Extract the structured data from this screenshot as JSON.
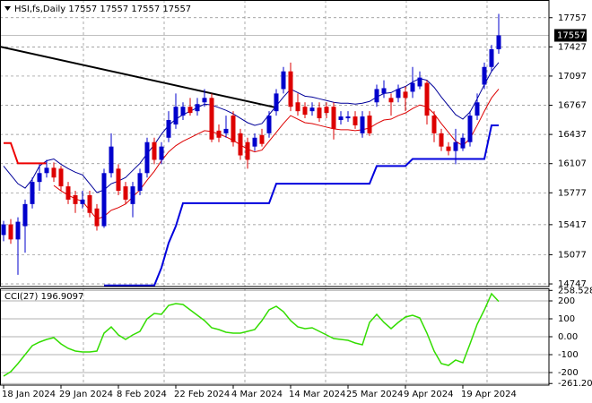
{
  "chart_data": [
    {
      "type": "candlestick",
      "title": "HSI,fs,Daily 17557 17557 17557 17557",
      "categories": [
        "18 Jan 2024",
        null,
        null,
        null,
        null,
        null,
        null,
        null,
        "29 Jan 2024",
        null,
        null,
        null,
        null,
        null,
        null,
        null,
        "8 Feb 2024",
        null,
        null,
        null,
        null,
        null,
        null,
        null,
        "22 Feb 2024",
        null,
        null,
        null,
        null,
        null,
        null,
        null,
        "4 Mar 2024",
        null,
        null,
        null,
        null,
        null,
        null,
        null,
        "14 Mar 2024",
        null,
        null,
        null,
        null,
        null,
        null,
        null,
        "25 Mar 2024",
        null,
        null,
        null,
        null,
        null,
        null,
        null,
        "9 Apr 2024",
        null,
        null,
        null,
        null,
        null,
        null,
        null,
        "19 Apr 2024",
        null,
        null,
        null,
        null,
        null
      ],
      "open": [
        15300,
        15420,
        15250,
        15400,
        15650,
        15900,
        16000,
        16060,
        16050,
        15850,
        15750,
        15650,
        15750,
        15600,
        15400,
        16000,
        16050,
        15850,
        15650,
        15800,
        16000,
        16350,
        16150,
        16400,
        16550,
        16650,
        16750,
        16700,
        16800,
        16850,
        16480,
        16450,
        16650,
        16450,
        16350,
        16300,
        16430,
        16450,
        16700,
        16950,
        17150,
        16800,
        16750,
        16700,
        16740,
        16750,
        16750,
        16600,
        16620,
        16640,
        16450,
        16650,
        16800,
        16900,
        16850,
        16850,
        16920,
        16920,
        16980,
        17020,
        16650,
        16450,
        16300,
        16250,
        16280,
        16350,
        16650,
        17000,
        17200,
        17400
      ],
      "high": [
        15460,
        15480,
        15500,
        15700,
        15950,
        16100,
        16150,
        16120,
        16080,
        15900,
        15800,
        15800,
        15800,
        15650,
        16050,
        16450,
        16100,
        15900,
        15900,
        16050,
        16400,
        16400,
        16350,
        16700,
        16900,
        16800,
        16850,
        16850,
        16950,
        16900,
        16550,
        16650,
        16700,
        16500,
        16400,
        16450,
        16500,
        16700,
        16950,
        17200,
        17250,
        16900,
        16800,
        16800,
        16800,
        16800,
        16800,
        16700,
        16700,
        16700,
        16700,
        16700,
        17000,
        17050,
        16900,
        17000,
        16980,
        17200,
        17150,
        17050,
        16700,
        16500,
        16350,
        16500,
        16450,
        16700,
        16900,
        17250,
        17450,
        17800
      ],
      "low": [
        15230,
        15200,
        14850,
        15100,
        15600,
        15800,
        15950,
        15900,
        15800,
        15650,
        15550,
        15600,
        15500,
        15350,
        15380,
        15950,
        15750,
        15650,
        15500,
        15750,
        15950,
        16100,
        16100,
        16350,
        16500,
        16600,
        16650,
        16650,
        16750,
        16350,
        16350,
        16400,
        16300,
        16150,
        16050,
        16250,
        16300,
        16400,
        16650,
        16900,
        16700,
        16650,
        16620,
        16650,
        16580,
        16620,
        16380,
        16550,
        16580,
        16500,
        16400,
        16420,
        16750,
        16850,
        16650,
        16800,
        16700,
        16850,
        16950,
        16550,
        16350,
        16250,
        16200,
        16100,
        16250,
        16300,
        16600,
        16950,
        17150,
        17350
      ],
      "close": [
        15420,
        15250,
        15450,
        15650,
        15900,
        16000,
        16060,
        15950,
        15850,
        15700,
        15650,
        15700,
        15550,
        15400,
        16000,
        16300,
        15800,
        15700,
        15850,
        16000,
        16350,
        16150,
        16300,
        16600,
        16750,
        16750,
        16680,
        16780,
        16850,
        16380,
        16400,
        16500,
        16350,
        16200,
        16150,
        16400,
        16330,
        16650,
        16900,
        17150,
        16750,
        16700,
        16660,
        16740,
        16620,
        16680,
        16500,
        16640,
        16640,
        16540,
        16640,
        16450,
        16950,
        16960,
        16800,
        16950,
        16850,
        17020,
        17080,
        16650,
        16450,
        16300,
        16250,
        16350,
        16400,
        16650,
        16800,
        17200,
        17400,
        17557
      ],
      "up_color": "#0000cc",
      "down_color": "#dd0000",
      "series": [
        {
          "color": "#000099",
          "values": [
            16080,
            15980,
            15880,
            15830,
            15930,
            16080,
            16140,
            16160,
            16100,
            16050,
            16010,
            15980,
            15880,
            15780,
            15810,
            15880,
            15910,
            15950,
            16030,
            16110,
            16220,
            16320,
            16440,
            16540,
            16610,
            16660,
            16700,
            16740,
            16780,
            16770,
            16740,
            16710,
            16670,
            16620,
            16570,
            16540,
            16560,
            16660,
            16760,
            16860,
            16950,
            16910,
            16870,
            16860,
            16840,
            16820,
            16800,
            16790,
            16790,
            16780,
            16790,
            16810,
            16860,
            16900,
            16910,
            16950,
            16980,
            17030,
            17070,
            17050,
            16970,
            16860,
            16760,
            16660,
            16610,
            16690,
            16840,
            17000,
            17150,
            17250
          ]
        },
        {
          "color": "#dd0000",
          "values": [
            null,
            null,
            null,
            null,
            null,
            null,
            null,
            15860,
            15800,
            15750,
            15710,
            15680,
            15580,
            15480,
            15510,
            15580,
            15610,
            15650,
            15730,
            15810,
            15920,
            16020,
            16140,
            16240,
            16310,
            16360,
            16400,
            16440,
            16480,
            16470,
            16440,
            16410,
            16370,
            16320,
            16270,
            16240,
            16260,
            16360,
            16460,
            16560,
            16650,
            16610,
            16570,
            16560,
            16540,
            16520,
            16500,
            16490,
            16490,
            16480,
            16490,
            16510,
            16560,
            16600,
            16610,
            16650,
            16680,
            16730,
            16770,
            16750,
            16670,
            16560,
            16460,
            16360,
            16310,
            16390,
            16540,
            16700,
            16850,
            16950
          ]
        },
        {
          "color": "#ee0000",
          "values": [
            16340,
            16340,
            16110,
            16110,
            16110,
            16110,
            16110,
            null,
            null,
            null,
            null,
            null,
            null,
            null,
            null,
            null,
            null,
            null,
            null,
            null,
            null,
            null,
            null,
            null,
            null,
            null,
            null,
            null,
            null,
            null,
            null,
            null,
            null,
            null,
            null,
            null,
            null,
            null,
            null,
            null,
            null,
            null,
            null,
            null,
            null,
            null,
            null,
            null,
            null,
            null,
            null,
            null,
            null,
            null,
            null,
            null,
            null,
            null,
            null,
            null,
            null,
            null,
            null,
            null,
            null,
            null,
            null,
            null,
            null,
            null
          ]
        },
        {
          "color": "#0000dd",
          "values": [
            null,
            null,
            null,
            null,
            null,
            null,
            null,
            null,
            null,
            null,
            null,
            null,
            null,
            null,
            14730,
            14730,
            14730,
            14730,
            14730,
            14730,
            14730,
            14730,
            14930,
            15210,
            15400,
            15660,
            15660,
            15660,
            15660,
            15660,
            15660,
            15660,
            15660,
            15660,
            15660,
            15660,
            15660,
            15660,
            15880,
            15880,
            15880,
            15880,
            15880,
            15880,
            15880,
            15880,
            15880,
            15880,
            15880,
            15880,
            15880,
            15880,
            16080,
            16080,
            16080,
            16080,
            16080,
            16160,
            16160,
            16160,
            16160,
            16160,
            16160,
            16160,
            16160,
            16160,
            16160,
            16160,
            16540,
            16540
          ]
        }
      ],
      "trendline": {
        "color": "#000000",
        "x": [
          0,
          38
        ],
        "y": [
          17430,
          16740
        ]
      },
      "last_price": 17557,
      "ylim": [
        14717,
        17957
      ],
      "yticks": [
        17757,
        17427,
        17097,
        16767,
        16437,
        16107,
        15777,
        15417,
        15077,
        14747
      ],
      "grid": true
    },
    {
      "type": "line",
      "title": "CCI(27) 196.9097",
      "series": [
        {
          "color": "#33dd00",
          "values": [
            -220,
            -195,
            -150,
            -100,
            -50,
            -30,
            -15,
            -5,
            -40,
            -65,
            -80,
            -85,
            -85,
            -80,
            20,
            55,
            10,
            -15,
            10,
            30,
            100,
            130,
            125,
            175,
            185,
            180,
            150,
            120,
            90,
            50,
            40,
            25,
            20,
            20,
            30,
            40,
            90,
            150,
            170,
            140,
            90,
            55,
            45,
            50,
            30,
            10,
            -10,
            -15,
            -20,
            -35,
            -45,
            80,
            125,
            80,
            45,
            80,
            110,
            120,
            105,
            20,
            -80,
            -150,
            -160,
            -130,
            -145,
            -40,
            70,
            150,
            240,
            196.9097
          ]
        }
      ],
      "ylim": [
        -270,
        270
      ],
      "yticks": [
        258.5286,
        200,
        100,
        {
          "value": 0,
          "label": "0.00"
        },
        -100,
        -200,
        -261.2018
      ],
      "grid": true
    }
  ]
}
